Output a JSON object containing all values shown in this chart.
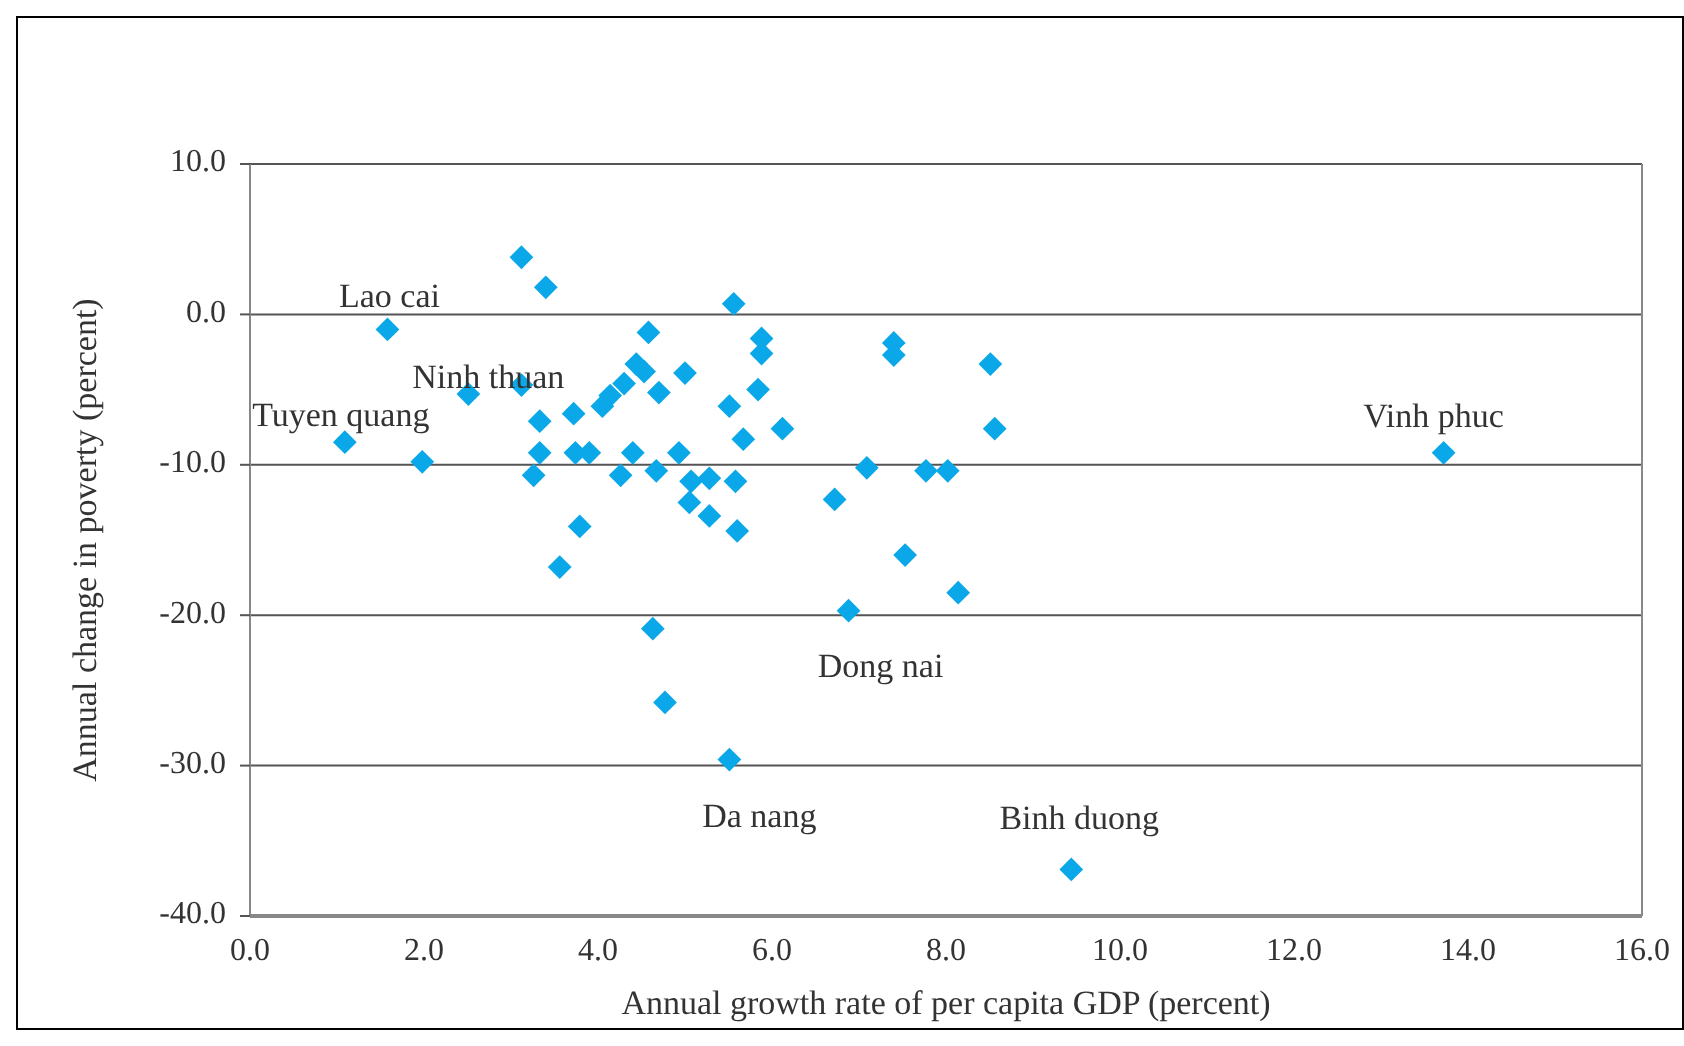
{
  "chart_data": {
    "type": "scatter",
    "xlabel": "Annual growth rate of per capita GDP (percent)",
    "ylabel": "Annual change in poverty (percent)",
    "xlim": [
      0,
      16
    ],
    "xticks": [
      {
        "value": 0,
        "label": "0.0"
      },
      {
        "value": 2,
        "label": "2.0"
      },
      {
        "value": 4,
        "label": "4.0"
      },
      {
        "value": 6,
        "label": "6.0"
      },
      {
        "value": 8,
        "label": "8.0"
      },
      {
        "value": 10,
        "label": "10.0"
      },
      {
        "value": 12,
        "label": "12.0"
      },
      {
        "value": 14,
        "label": "14.0"
      },
      {
        "value": 16,
        "label": "16.0"
      }
    ],
    "ylim": [
      -40,
      10
    ],
    "yticks": [
      {
        "value": -40,
        "label": "-40.0"
      },
      {
        "value": -30,
        "label": "-30.0"
      },
      {
        "value": -20,
        "label": "-20.0"
      },
      {
        "value": -10,
        "label": "-10.0"
      },
      {
        "value": 0,
        "label": "0.0"
      },
      {
        "value": 10,
        "label": "10.0"
      }
    ],
    "grid": "y",
    "marker": "diamond",
    "series": [
      {
        "color": "#0aa8e8",
        "x": [
          1.09,
          1.58,
          1.98,
          2.51,
          3.12,
          3.4,
          3.12,
          3.33,
          3.26,
          3.33,
          3.56,
          3.72,
          3.74,
          3.79,
          3.9,
          4.05,
          4.14,
          4.26,
          4.3,
          4.4,
          4.44,
          4.53,
          4.58,
          4.7,
          4.67,
          4.63,
          4.77,
          4.93,
          5.0,
          5.05,
          5.07,
          5.28,
          5.28,
          5.51,
          5.56,
          5.58,
          5.6,
          5.51,
          5.67,
          5.84,
          5.88,
          5.88,
          6.12,
          6.72,
          6.88,
          7.09,
          7.4,
          7.4,
          7.53,
          7.77,
          8.02,
          8.14,
          8.51,
          8.56,
          9.44,
          13.72
        ],
        "values": [
          -8.5,
          -1.0,
          -9.8,
          -5.3,
          3.8,
          1.8,
          -4.7,
          -7.1,
          -10.7,
          -9.2,
          -16.8,
          -6.6,
          -9.2,
          -14.1,
          -9.2,
          -6.1,
          -5.4,
          -10.7,
          -4.6,
          -9.2,
          -3.3,
          -3.8,
          -1.2,
          -5.2,
          -10.4,
          -20.9,
          -25.8,
          -9.2,
          -3.9,
          -12.5,
          -11.1,
          -10.9,
          -13.4,
          -6.1,
          0.7,
          -11.1,
          -14.4,
          -29.6,
          -8.3,
          -5.0,
          -1.6,
          -2.6,
          -7.6,
          -12.3,
          -19.7,
          -10.2,
          -1.9,
          -2.7,
          -16.0,
          -10.4,
          -10.4,
          -18.5,
          -3.3,
          -7.6,
          -36.9,
          -9.2
        ]
      }
    ],
    "annotations": [
      {
        "text": "Lao cai",
        "x": 1.58,
        "y": -1.0
      },
      {
        "text": "Ninh thuan",
        "x": 2.51,
        "y": -5.3
      },
      {
        "text": "Tuyen quang",
        "x": 1.09,
        "y": -8.5
      },
      {
        "text": "Vinh phuc",
        "x": 13.72,
        "y": -9.2
      },
      {
        "text": "Dong nai",
        "x": 6.88,
        "y": -19.7
      },
      {
        "text": "Da nang",
        "x": 5.51,
        "y": -29.6
      },
      {
        "text": "Binh duong",
        "x": 9.44,
        "y": -36.9
      }
    ]
  }
}
